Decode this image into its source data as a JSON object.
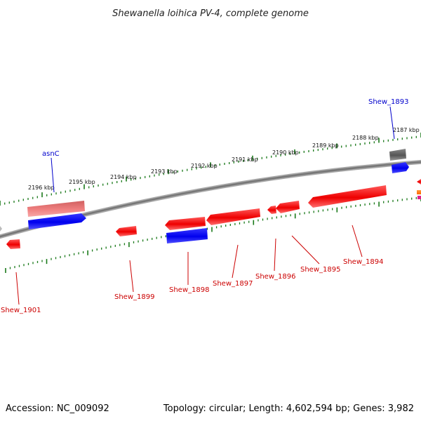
{
  "header": {
    "title": "Shewanella loihica PV-4, complete genome"
  },
  "footer": {
    "accession": "Accession: NC_009092",
    "summary": "Topology: circular; Length: 4,602,594 bp; Genes: 3,982"
  },
  "ticks": [
    {
      "label": "2196 kbp"
    },
    {
      "label": "2195 kbp"
    },
    {
      "label": "2194 kbp"
    },
    {
      "label": "2193 kbp"
    },
    {
      "label": "2192 kbp"
    },
    {
      "label": "2191 kbp"
    },
    {
      "label": "2190 kbp"
    },
    {
      "label": "2189 kbp"
    },
    {
      "label": "2188 kbp"
    },
    {
      "label": "2187 kbp"
    }
  ],
  "genes": {
    "asnC": "asnC",
    "shew_1893": "Shew_1893",
    "shew_1894": "Shew_1894",
    "shew_1895": "Shew_1895",
    "shew_1896": "Shew_1896",
    "shew_1897": "Shew_1897",
    "shew_1898": "Shew_1898",
    "shew_1899": "Shew_1899",
    "shew_1901": "Shew_1901"
  },
  "colors": {
    "forward_gene_label": "#0000cc",
    "reverse_gene_label": "#cc0000",
    "tick": "#1a7a1a",
    "backbone": "#808080",
    "cds_red": "#ee0000",
    "cds_blue": "#0000ee",
    "cds_pink": "#f08080",
    "cds_gray": "#666666"
  }
}
